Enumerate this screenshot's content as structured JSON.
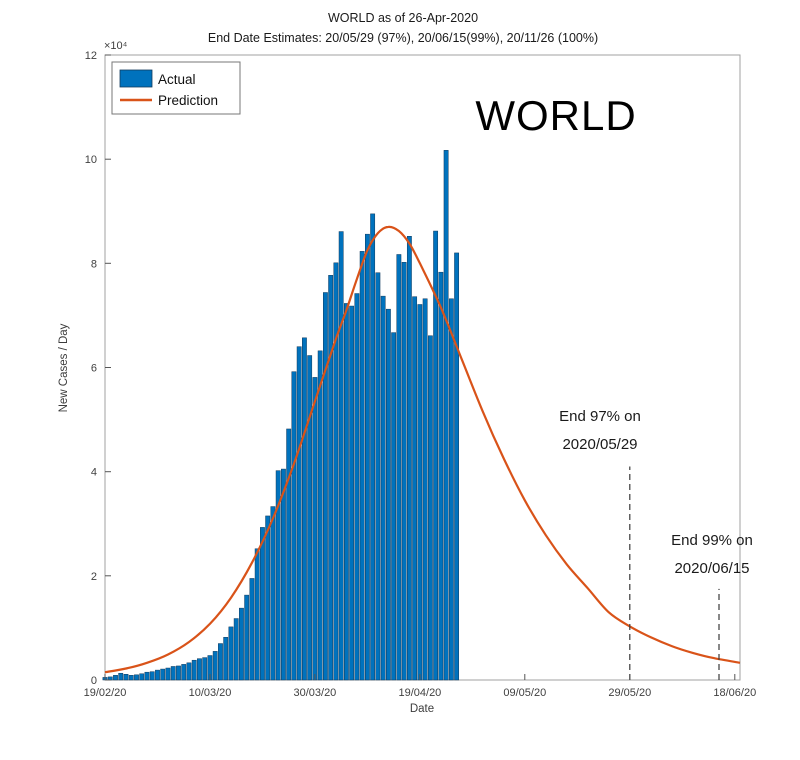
{
  "header": {
    "title": "WORLD as of 26-Apr-2020",
    "subtitle": "End Date Estimates: 20/05/29 (97%), 20/06/15(99%), 20/11/26 (100%)"
  },
  "overlay": {
    "label": "WORLD"
  },
  "colors": {
    "axis": "#8c8c8c",
    "tick": "#555555",
    "bar": "#0072BD",
    "bar_edge": "#123a5c",
    "prediction": "#D95319",
    "annotation": "#3a3a3a",
    "background": "#ffffff"
  },
  "annotations": [
    {
      "lines": [
        "End 97% on",
        "2020/05/29"
      ],
      "line_day": 100,
      "line_top_value": 41000
    },
    {
      "lines": [
        "End 99% on",
        "2020/06/15"
      ],
      "line_day": 117,
      "line_top_value": 17500
    }
  ],
  "chart_data": {
    "type": "bar",
    "title": "WORLD as of 26-Apr-2020",
    "subtitle": "End Date Estimates: 20/05/29 (97%), 20/06/15(99%), 20/11/26 (100%)",
    "xlabel": "Date",
    "ylabel": "New Cases / Day",
    "y_axis_multiplier": "×10⁴",
    "x_unit": "days since 19/02/20",
    "xlim_days": [
      0,
      121
    ],
    "ylim": [
      0,
      120000
    ],
    "grid": false,
    "legend_position": "top-left",
    "xticks": {
      "days": [
        0,
        20,
        40,
        60,
        80,
        100,
        120
      ],
      "labels": [
        "19/02/20",
        "10/03/20",
        "30/03/20",
        "19/04/20",
        "09/05/20",
        "29/05/20",
        "18/06/20"
      ]
    },
    "yticks": {
      "values": [
        0,
        20000,
        40000,
        60000,
        80000,
        100000,
        120000
      ],
      "labels": [
        "0",
        "2",
        "4",
        "6",
        "8",
        "10",
        "12"
      ]
    },
    "series": [
      {
        "name": "Actual",
        "kind": "bar",
        "color": "#0072BD",
        "start_day": 0,
        "values": [
          500,
          600,
          900,
          1300,
          1100,
          900,
          1000,
          1200,
          1500,
          1600,
          1900,
          2100,
          2300,
          2600,
          2700,
          3000,
          3300,
          3800,
          4100,
          4300,
          4700,
          5500,
          7000,
          8200,
          10200,
          11800,
          13800,
          16300,
          19500,
          25200,
          29300,
          31500,
          33300,
          40200,
          40500,
          48200,
          59200,
          64000,
          65700,
          62300,
          58100,
          63200,
          74400,
          77700,
          80100,
          86100,
          72300,
          71800,
          74200,
          82300,
          85600,
          89500,
          78200,
          73700,
          71200,
          66700,
          81700,
          80200,
          85200,
          73600,
          72100,
          73200,
          66100,
          86200,
          78300,
          101700,
          73200,
          82000
        ]
      },
      {
        "name": "Prediction",
        "kind": "line",
        "color": "#D95319",
        "points": [
          [
            0,
            1500
          ],
          [
            4,
            2200
          ],
          [
            8,
            3300
          ],
          [
            12,
            4900
          ],
          [
            16,
            7300
          ],
          [
            20,
            10800
          ],
          [
            24,
            15800
          ],
          [
            28,
            22500
          ],
          [
            32,
            31000
          ],
          [
            36,
            41500
          ],
          [
            40,
            53500
          ],
          [
            44,
            65500
          ],
          [
            46,
            71000
          ],
          [
            48,
            77000
          ],
          [
            50,
            82500
          ],
          [
            52,
            85800
          ],
          [
            54,
            87000
          ],
          [
            56,
            86200
          ],
          [
            58,
            83800
          ],
          [
            60,
            80000
          ],
          [
            64,
            71500
          ],
          [
            68,
            61500
          ],
          [
            72,
            51500
          ],
          [
            76,
            42500
          ],
          [
            80,
            34500
          ],
          [
            84,
            27800
          ],
          [
            88,
            22200
          ],
          [
            92,
            17600
          ],
          [
            96,
            13000
          ],
          [
            100,
            10300
          ],
          [
            104,
            8200
          ],
          [
            108,
            6500
          ],
          [
            112,
            5200
          ],
          [
            116,
            4200
          ],
          [
            121,
            3300
          ]
        ]
      }
    ]
  }
}
